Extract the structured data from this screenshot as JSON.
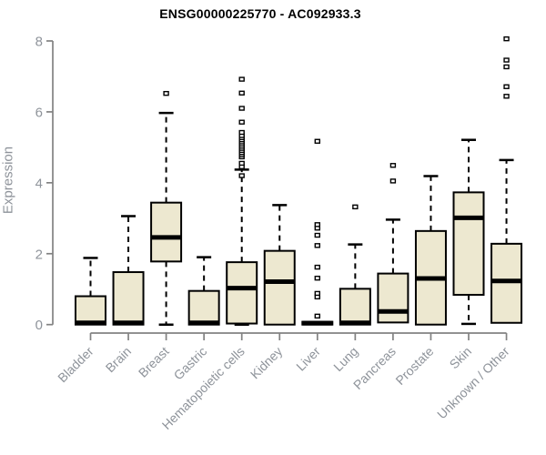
{
  "chart_data": {
    "type": "boxplot",
    "title": "ENSG00000225770 - AC092933.3",
    "ylabel": "Expression",
    "xlabel": "",
    "ylim": [
      0,
      8
    ],
    "yticks": [
      0,
      2,
      4,
      6,
      8
    ],
    "grid": false,
    "legend": null,
    "x_tick_label_rotation_deg": 45,
    "colors": {
      "box_fill": "#EDE8D0",
      "box_stroke": "#000000",
      "median": "#000000",
      "whisker": "#000000",
      "outlier_fill": "#ffffff",
      "outlier_stroke": "#000000",
      "axis": "#828282",
      "tick_label": "#8e939a",
      "title": "#000000",
      "background": "#ffffff"
    },
    "categories": [
      {
        "label": "Bladder",
        "low": 0,
        "q1": 0,
        "median": 0.05,
        "q3": 0.8,
        "high": 1.88,
        "outliers": []
      },
      {
        "label": "Brain",
        "low": 0,
        "q1": 0,
        "median": 0.05,
        "q3": 1.48,
        "high": 3.06,
        "outliers": []
      },
      {
        "label": "Breast",
        "low": 0,
        "q1": 1.78,
        "median": 2.46,
        "q3": 3.44,
        "high": 5.97,
        "outliers": [
          6.52
        ]
      },
      {
        "label": "Gastric",
        "low": 0,
        "q1": 0,
        "median": 0.05,
        "q3": 0.95,
        "high": 1.9,
        "outliers": []
      },
      {
        "label": "Hematopoietic cells",
        "low": 0,
        "q1": 0.03,
        "median": 1.03,
        "q3": 1.76,
        "high": 4.37,
        "outliers": [
          4.2,
          4.45,
          4.55,
          4.73,
          4.79,
          4.85,
          4.91,
          4.97,
          5.03,
          5.09,
          5.15,
          5.21,
          5.27,
          5.33,
          5.42,
          5.71,
          6.1,
          6.53,
          6.92
        ]
      },
      {
        "label": "Kidney",
        "low": 0,
        "q1": 0,
        "median": 1.21,
        "q3": 2.08,
        "high": 3.37,
        "outliers": []
      },
      {
        "label": "Liver",
        "low": 0,
        "q1": 0,
        "median": 0.04,
        "q3": 0.08,
        "high": 0.08,
        "outliers": [
          0.24,
          0.78,
          0.88,
          1.31,
          1.62,
          2.23,
          2.52,
          2.72,
          2.82,
          5.17
        ]
      },
      {
        "label": "Lung",
        "low": 0,
        "q1": 0,
        "median": 0.05,
        "q3": 1.01,
        "high": 2.26,
        "outliers": [
          3.32
        ]
      },
      {
        "label": "Pancreas",
        "low": 0.06,
        "q1": 0.06,
        "median": 0.37,
        "q3": 1.44,
        "high": 2.96,
        "outliers": [
          4.05,
          4.49
        ]
      },
      {
        "label": "Prostate",
        "low": 0,
        "q1": 0,
        "median": 1.3,
        "q3": 2.64,
        "high": 4.19,
        "outliers": []
      },
      {
        "label": "Skin",
        "low": 0.02,
        "q1": 0.84,
        "median": 3.01,
        "q3": 3.73,
        "high": 5.21,
        "outliers": []
      },
      {
        "label": "Unknown / Other",
        "low": 0.05,
        "q1": 0.05,
        "median": 1.23,
        "q3": 2.28,
        "high": 4.64,
        "outliers": [
          6.44,
          6.71,
          7.27,
          7.46,
          8.06
        ]
      }
    ]
  }
}
